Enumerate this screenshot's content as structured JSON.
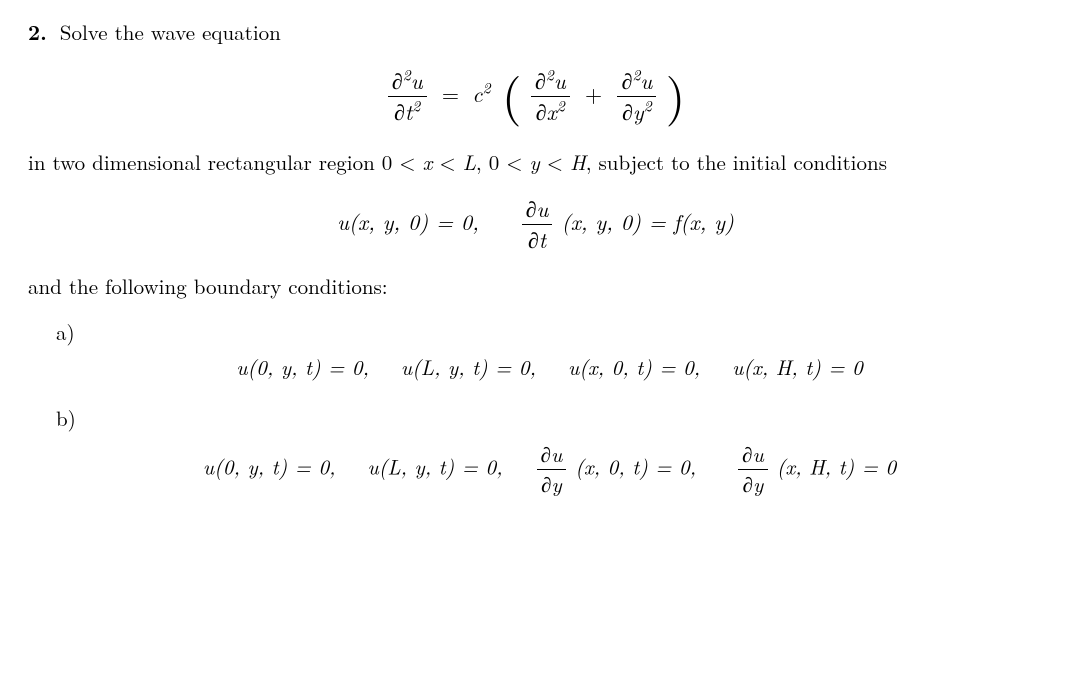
{
  "problem": {
    "number": "2.",
    "intro": "Solve the wave equation",
    "main_equation": {
      "lhs_num": "∂²u",
      "lhs_den": "∂t²",
      "equals": "=",
      "coeff": "c²",
      "term1_num": "∂²u",
      "term1_den": "∂x²",
      "plus": "+",
      "term2_num": "∂²u",
      "term2_den": "∂y²"
    },
    "region_text": "in two dimensional rectangular region 0 < x < L, 0 < y < H, subject to the initial conditions",
    "initial_conditions": {
      "ic1": "u(x, y, 0) = 0,",
      "ic2_num": "∂u",
      "ic2_den": "∂t",
      "ic2_args": "(x, y, 0) = f(x, y)"
    },
    "bc_intro": "and the following boundary conditions:",
    "parts": {
      "a": {
        "label": "a)",
        "bc1": "u(0, y, t) = 0,",
        "bc2": "u(L, y, t) = 0,",
        "bc3": "u(x, 0, t) = 0,",
        "bc4": "u(x, H, t) = 0"
      },
      "b": {
        "label": "b)",
        "bc1": "u(0, y, t) = 0,",
        "bc2": "u(L, y, t) = 0,",
        "bc3_num": "∂u",
        "bc3_den": "∂y",
        "bc3_args": "(x, 0, t) = 0,",
        "bc4_num": "∂u",
        "bc4_den": "∂y",
        "bc4_args": "(x, H, t) = 0"
      }
    }
  }
}
